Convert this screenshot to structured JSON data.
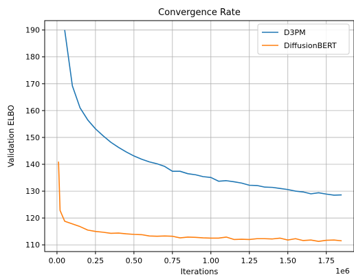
{
  "chart_data": {
    "type": "line",
    "title": "Convergence Rate",
    "xlabel": "Iterations",
    "ylabel": "Validation ELBO",
    "x_offset_label": "1e6",
    "xlim": [
      -0.08,
      1.93
    ],
    "ylim": [
      107.5,
      193.5
    ],
    "xticks": [
      0.0,
      0.25,
      0.5,
      0.75,
      1.0,
      1.25,
      1.5,
      1.75
    ],
    "xtick_labels": [
      "0.00",
      "0.25",
      "0.50",
      "0.75",
      "1.00",
      "1.25",
      "1.50",
      "1.75"
    ],
    "yticks": [
      110,
      120,
      130,
      140,
      150,
      160,
      170,
      180,
      190
    ],
    "ytick_labels": [
      "110",
      "120",
      "130",
      "140",
      "150",
      "160",
      "170",
      "180",
      "190"
    ],
    "grid": true,
    "legend_position": "top-right",
    "series": [
      {
        "name": "D3PM",
        "color": "#1f77b4",
        "x": [
          0.05,
          0.1,
          0.15,
          0.2,
          0.25,
          0.3,
          0.35,
          0.4,
          0.45,
          0.5,
          0.55,
          0.6,
          0.65,
          0.7,
          0.75,
          0.8,
          0.85,
          0.9,
          0.95,
          1.0,
          1.05,
          1.1,
          1.15,
          1.2,
          1.25,
          1.3,
          1.35,
          1.4,
          1.45,
          1.5,
          1.55,
          1.6,
          1.65,
          1.7,
          1.75,
          1.8,
          1.85
        ],
        "y": [
          190.0,
          169.2,
          161.0,
          156.5,
          153.2,
          150.6,
          148.2,
          146.3,
          144.6,
          143.1,
          141.9,
          140.9,
          140.2,
          139.2,
          137.4,
          137.4,
          136.5,
          136.1,
          135.4,
          135.1,
          133.7,
          133.9,
          133.5,
          133.0,
          132.2,
          132.1,
          131.5,
          131.4,
          131.0,
          130.6,
          130.0,
          129.7,
          129.0,
          129.4,
          128.9,
          128.5,
          128.6
        ]
      },
      {
        "name": "DiffusionBERT",
        "color": "#ff7f0e",
        "x": [
          0.01,
          0.02,
          0.05,
          0.1,
          0.15,
          0.2,
          0.25,
          0.3,
          0.35,
          0.4,
          0.45,
          0.5,
          0.55,
          0.6,
          0.65,
          0.7,
          0.75,
          0.8,
          0.85,
          0.9,
          0.95,
          1.0,
          1.05,
          1.1,
          1.15,
          1.2,
          1.25,
          1.3,
          1.35,
          1.4,
          1.45,
          1.5,
          1.55,
          1.6,
          1.65,
          1.7,
          1.75,
          1.8,
          1.85
        ],
        "y": [
          141.0,
          122.8,
          118.8,
          117.8,
          116.8,
          115.5,
          115.0,
          114.7,
          114.3,
          114.4,
          114.1,
          113.9,
          113.8,
          113.3,
          113.2,
          113.3,
          113.2,
          112.6,
          112.9,
          112.8,
          112.6,
          112.5,
          112.5,
          112.9,
          112.0,
          112.1,
          112.0,
          112.3,
          112.3,
          112.2,
          112.5,
          111.8,
          112.3,
          111.6,
          111.8,
          111.3,
          111.7,
          111.8,
          111.5
        ]
      }
    ]
  }
}
